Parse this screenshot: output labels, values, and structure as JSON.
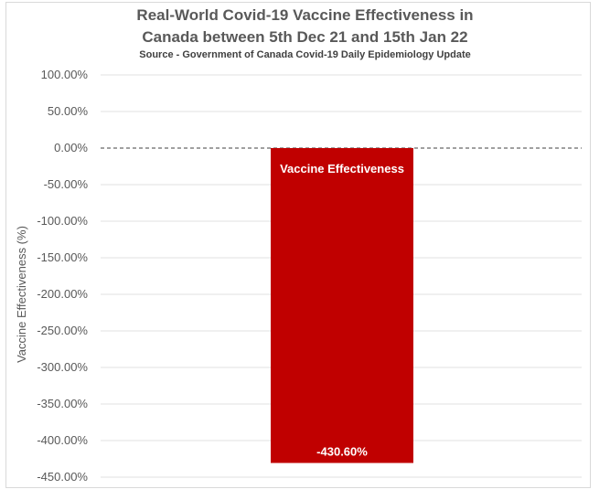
{
  "chart_data": {
    "type": "bar",
    "title_line1": "Real-World Covid-19 Vaccine Effectiveness in",
    "title_line2": "Canada between 5th Dec 21 and 15th Jan 22",
    "subtitle": "Source - Government of Canada Covid-19 Daily Epidemiology Update",
    "ylabel": "Vaccine Effectiveness (%)",
    "categories": [
      "Vaccine Effectiveness"
    ],
    "values": [
      -430.6
    ],
    "value_label": "-430.60%",
    "ylim": [
      -450,
      100
    ],
    "yticks": [
      "100.00%",
      "50.00%",
      "0.00%",
      "-50.00%",
      "-100.00%",
      "-150.00%",
      "-200.00%",
      "-250.00%",
      "-300.00%",
      "-350.00%",
      "-400.00%",
      "-450.00%"
    ],
    "grid": true,
    "zero_line": "dashed",
    "bar_color": "#c00000"
  }
}
